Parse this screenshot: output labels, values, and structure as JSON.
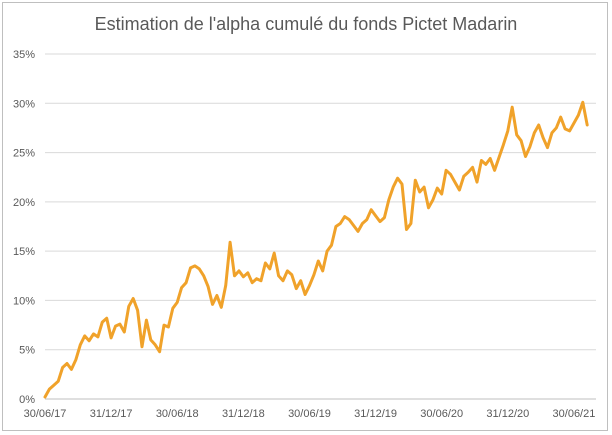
{
  "chart_data": {
    "type": "line",
    "title": "Estimation de l'alpha cumulé du fonds Pictet Madarin",
    "xlabel": "",
    "ylabel": "",
    "ylim": [
      0,
      35
    ],
    "grid": true,
    "legend": "none",
    "x_ticks": [
      "30/06/17",
      "31/12/17",
      "30/06/18",
      "31/12/18",
      "30/06/19",
      "31/12/19",
      "30/06/20",
      "31/12/20",
      "30/06/21"
    ],
    "y_ticks": [
      "0%",
      "5%",
      "10%",
      "15%",
      "20%",
      "25%",
      "30%",
      "35%"
    ],
    "color": "#f0a22a",
    "series": [
      {
        "values": [
          [
            0.0,
            0.2
          ],
          [
            0.2,
            1.0
          ],
          [
            0.4,
            1.4
          ],
          [
            0.6,
            1.8
          ],
          [
            0.8,
            3.2
          ],
          [
            1.0,
            3.6
          ],
          [
            1.2,
            3.0
          ],
          [
            1.4,
            4.0
          ],
          [
            1.6,
            5.5
          ],
          [
            1.8,
            6.4
          ],
          [
            2.0,
            5.9
          ],
          [
            2.2,
            6.6
          ],
          [
            2.4,
            6.3
          ],
          [
            2.6,
            7.8
          ],
          [
            2.8,
            8.2
          ],
          [
            3.0,
            6.2
          ],
          [
            3.2,
            7.4
          ],
          [
            3.4,
            7.6
          ],
          [
            3.6,
            6.8
          ],
          [
            3.8,
            9.4
          ],
          [
            4.0,
            10.2
          ],
          [
            4.2,
            9.0
          ],
          [
            4.4,
            5.3
          ],
          [
            4.6,
            8.0
          ],
          [
            4.8,
            6.0
          ],
          [
            5.0,
            5.5
          ],
          [
            5.2,
            4.8
          ],
          [
            5.4,
            7.5
          ],
          [
            5.6,
            7.3
          ],
          [
            5.8,
            9.2
          ],
          [
            6.0,
            9.8
          ],
          [
            6.2,
            11.3
          ],
          [
            6.4,
            11.8
          ],
          [
            6.6,
            13.3
          ],
          [
            6.8,
            13.5
          ],
          [
            7.0,
            13.2
          ],
          [
            7.2,
            12.5
          ],
          [
            7.4,
            11.4
          ],
          [
            7.6,
            9.6
          ],
          [
            7.8,
            10.5
          ],
          [
            8.0,
            9.3
          ],
          [
            8.2,
            11.5
          ],
          [
            8.4,
            15.9
          ],
          [
            8.6,
            12.5
          ],
          [
            8.8,
            13.0
          ],
          [
            9.0,
            12.4
          ],
          [
            9.2,
            12.8
          ],
          [
            9.4,
            11.8
          ],
          [
            9.6,
            12.2
          ],
          [
            9.8,
            12.0
          ],
          [
            10.0,
            13.8
          ],
          [
            10.2,
            13.2
          ],
          [
            10.4,
            14.8
          ],
          [
            10.6,
            12.5
          ],
          [
            10.8,
            12.0
          ],
          [
            11.0,
            13.0
          ],
          [
            11.2,
            12.6
          ],
          [
            11.4,
            11.2
          ],
          [
            11.6,
            12.0
          ],
          [
            11.8,
            10.6
          ],
          [
            12.0,
            11.5
          ],
          [
            12.2,
            12.6
          ],
          [
            12.4,
            14.0
          ],
          [
            12.6,
            13.0
          ],
          [
            12.8,
            15.0
          ],
          [
            13.0,
            15.6
          ],
          [
            13.2,
            17.5
          ],
          [
            13.4,
            17.8
          ],
          [
            13.6,
            18.5
          ],
          [
            13.8,
            18.2
          ],
          [
            14.0,
            17.6
          ],
          [
            14.2,
            17.0
          ],
          [
            14.4,
            17.8
          ],
          [
            14.6,
            18.2
          ],
          [
            14.8,
            19.2
          ],
          [
            15.0,
            18.6
          ],
          [
            15.2,
            18.0
          ],
          [
            15.4,
            18.4
          ],
          [
            15.6,
            20.2
          ],
          [
            15.8,
            21.5
          ],
          [
            16.0,
            22.4
          ],
          [
            16.2,
            21.8
          ],
          [
            16.4,
            17.2
          ],
          [
            16.6,
            17.8
          ],
          [
            16.8,
            22.2
          ],
          [
            17.0,
            21.0
          ],
          [
            17.2,
            21.5
          ],
          [
            17.4,
            19.4
          ],
          [
            17.6,
            20.2
          ],
          [
            17.8,
            21.4
          ],
          [
            18.0,
            20.8
          ],
          [
            18.2,
            23.2
          ],
          [
            18.4,
            22.8
          ],
          [
            18.6,
            22.0
          ],
          [
            18.8,
            21.2
          ],
          [
            19.0,
            22.6
          ],
          [
            19.2,
            23.0
          ],
          [
            19.4,
            23.5
          ],
          [
            19.6,
            22.0
          ],
          [
            19.8,
            24.2
          ],
          [
            20.0,
            23.8
          ],
          [
            20.2,
            24.4
          ],
          [
            20.4,
            23.2
          ],
          [
            20.6,
            24.5
          ],
          [
            20.8,
            25.8
          ],
          [
            21.0,
            27.2
          ],
          [
            21.2,
            29.6
          ],
          [
            21.4,
            26.8
          ],
          [
            21.6,
            26.2
          ],
          [
            21.8,
            24.6
          ],
          [
            22.0,
            25.6
          ],
          [
            22.2,
            27.0
          ],
          [
            22.4,
            27.8
          ],
          [
            22.6,
            26.5
          ],
          [
            22.8,
            25.5
          ],
          [
            23.0,
            27.0
          ],
          [
            23.2,
            27.5
          ],
          [
            23.4,
            28.6
          ],
          [
            23.6,
            27.4
          ],
          [
            23.8,
            27.2
          ],
          [
            24.0,
            28.0
          ],
          [
            24.2,
            28.8
          ],
          [
            24.4,
            30.1
          ],
          [
            24.6,
            27.8
          ]
        ]
      }
    ]
  }
}
